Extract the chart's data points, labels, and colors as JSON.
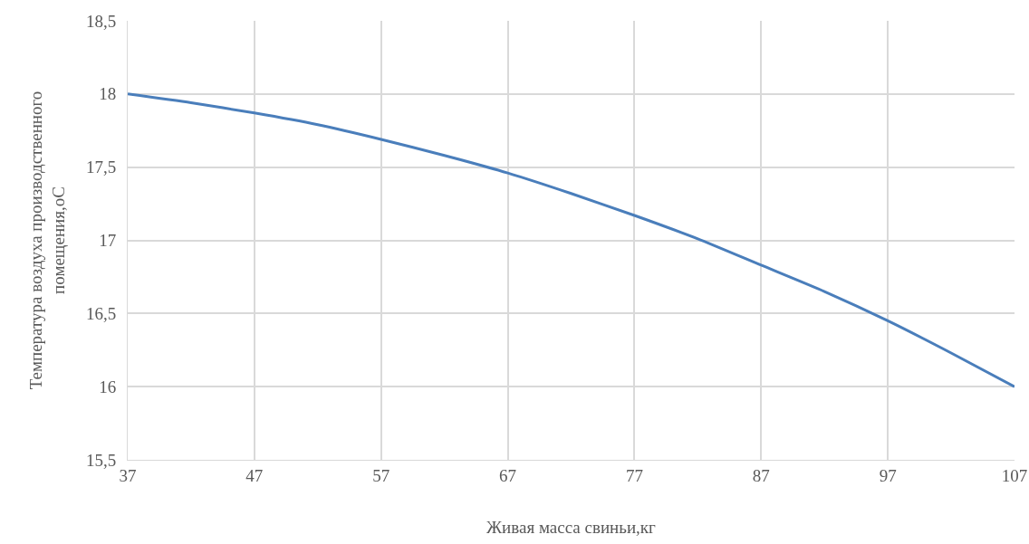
{
  "chart_data": {
    "type": "line",
    "xlabel": "Живая масса свиньи,кг",
    "ylabel": "Температура воздуха производственного\nпомещения,оС",
    "x": [
      37,
      42,
      47,
      52,
      57,
      62,
      67,
      72,
      77,
      82,
      87,
      92,
      97,
      102,
      107
    ],
    "series": [
      {
        "color": "#4a7ebb",
        "values": [
          18.0,
          17.94,
          17.87,
          17.79,
          17.69,
          17.58,
          17.46,
          17.32,
          17.17,
          17.01,
          16.83,
          16.65,
          16.45,
          16.23,
          16.0
        ]
      }
    ],
    "xlim": [
      37,
      107
    ],
    "xticks": [
      37,
      47,
      57,
      67,
      77,
      87,
      97,
      107
    ],
    "ylim": [
      15.5,
      18.5
    ],
    "yticks": [
      {
        "value": 15.5,
        "label": "15,5"
      },
      16,
      {
        "value": 16.5,
        "label": "16,5"
      },
      17,
      {
        "value": 17.5,
        "label": "17,5"
      },
      18,
      {
        "value": 18.5,
        "label": "18,5"
      }
    ],
    "grid": true,
    "marker": "none",
    "line_style": "solid"
  }
}
